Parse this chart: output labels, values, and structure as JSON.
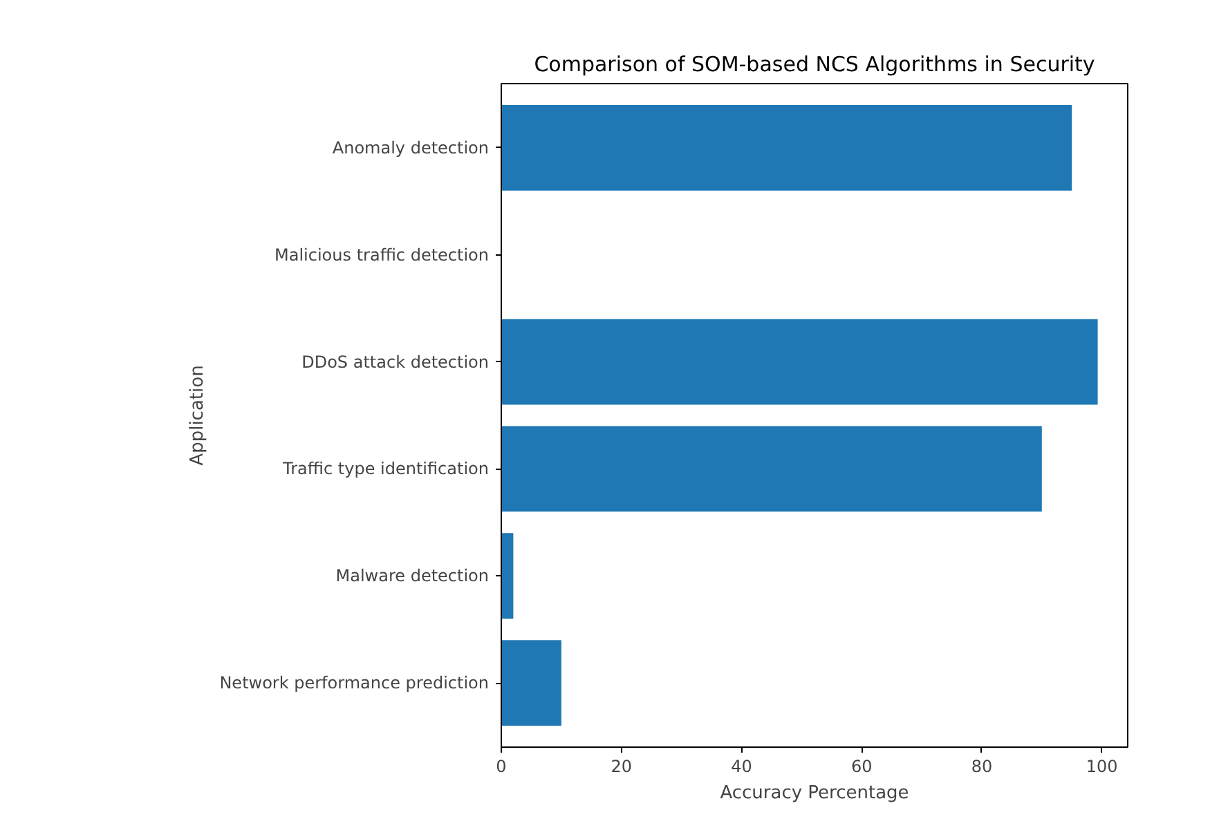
{
  "chart_data": {
    "type": "bar",
    "orientation": "horizontal",
    "title": "Comparison of SOM-based NCS Algorithms in Security",
    "xlabel": "Accuracy Percentage",
    "ylabel": "Application",
    "categories": [
      "Anomaly detection",
      "Malicious traffic detection",
      "DDoS attack detection",
      "Traffic type identification",
      "Malware detection",
      "Network performance prediction"
    ],
    "values": [
      95,
      0,
      99.3,
      90,
      2,
      10
    ],
    "color": "#1f77b4",
    "xlim": [
      0,
      104.3
    ],
    "xticks": [
      0,
      20,
      40,
      60,
      80,
      100
    ],
    "grid": false
  }
}
